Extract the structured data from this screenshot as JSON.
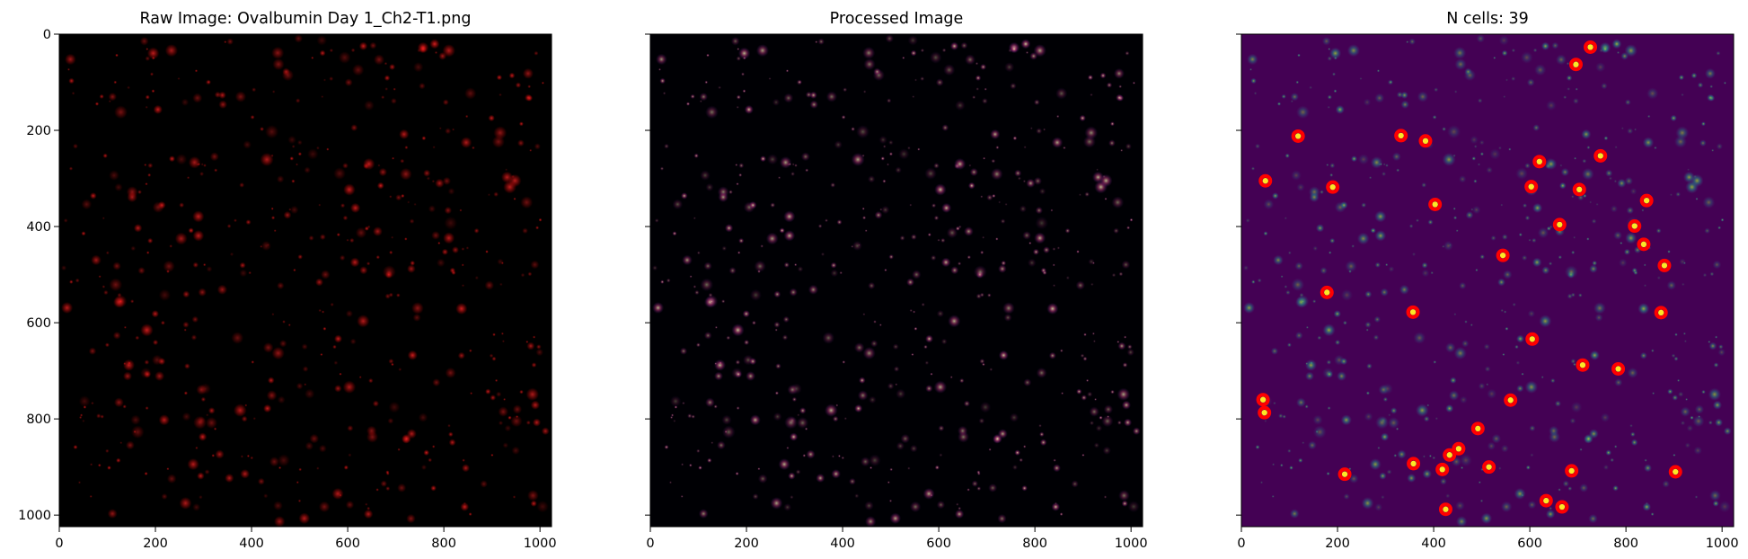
{
  "chart_data": [
    {
      "type": "image",
      "title": "Raw Image: Ovalbumin Day 1_Ch2-T1.png",
      "colormap": "black-red",
      "background": "#000000",
      "spot_color": "#ff1a1a",
      "xlim": [
        0,
        1024
      ],
      "ylim": [
        1024,
        0
      ],
      "xticks": [
        0,
        200,
        400,
        600,
        800,
        1000
      ],
      "yticks": [
        0,
        200,
        400,
        600,
        800,
        1000
      ],
      "yticklabels_visible": true
    },
    {
      "type": "image",
      "title": "Processed Image",
      "colormap": "magma",
      "background": "#000004",
      "spot_color": "#b73779",
      "xlim": [
        0,
        1024
      ],
      "ylim": [
        1024,
        0
      ],
      "xticks": [
        0,
        200,
        400,
        600,
        800,
        1000
      ],
      "yticks": [
        0,
        200,
        400,
        600,
        800,
        1000
      ],
      "yticklabels_visible": false
    },
    {
      "type": "scatter",
      "title": "N cells: 39",
      "colormap": "viridis",
      "background": "#440154",
      "spot_color": "#21918c",
      "marker_color": "#ff0000",
      "xlim": [
        0,
        1024
      ],
      "ylim": [
        1024,
        0
      ],
      "xticks": [
        0,
        200,
        400,
        600,
        800,
        1000
      ],
      "yticks": [
        0,
        200,
        400,
        600,
        800,
        1000
      ],
      "yticklabels_visible": false,
      "cells": [
        [
          45,
          760
        ],
        [
          48,
          787
        ],
        [
          50,
          305
        ],
        [
          118,
          212
        ],
        [
          178,
          537
        ],
        [
          190,
          318
        ],
        [
          215,
          915
        ],
        [
          332,
          211
        ],
        [
          357,
          578
        ],
        [
          358,
          893
        ],
        [
          383,
          222
        ],
        [
          403,
          354
        ],
        [
          418,
          905
        ],
        [
          425,
          988
        ],
        [
          433,
          875
        ],
        [
          452,
          862
        ],
        [
          492,
          820
        ],
        [
          515,
          900
        ],
        [
          544,
          460
        ],
        [
          560,
          761
        ],
        [
          603,
          317
        ],
        [
          605,
          634
        ],
        [
          620,
          265
        ],
        [
          634,
          970
        ],
        [
          662,
          396
        ],
        [
          667,
          983
        ],
        [
          687,
          908
        ],
        [
          696,
          63
        ],
        [
          703,
          323
        ],
        [
          710,
          688
        ],
        [
          726,
          27
        ],
        [
          747,
          253
        ],
        [
          784,
          696
        ],
        [
          818,
          399
        ],
        [
          837,
          437
        ],
        [
          843,
          346
        ],
        [
          873,
          579
        ],
        [
          880,
          481
        ],
        [
          903,
          910
        ]
      ]
    }
  ]
}
